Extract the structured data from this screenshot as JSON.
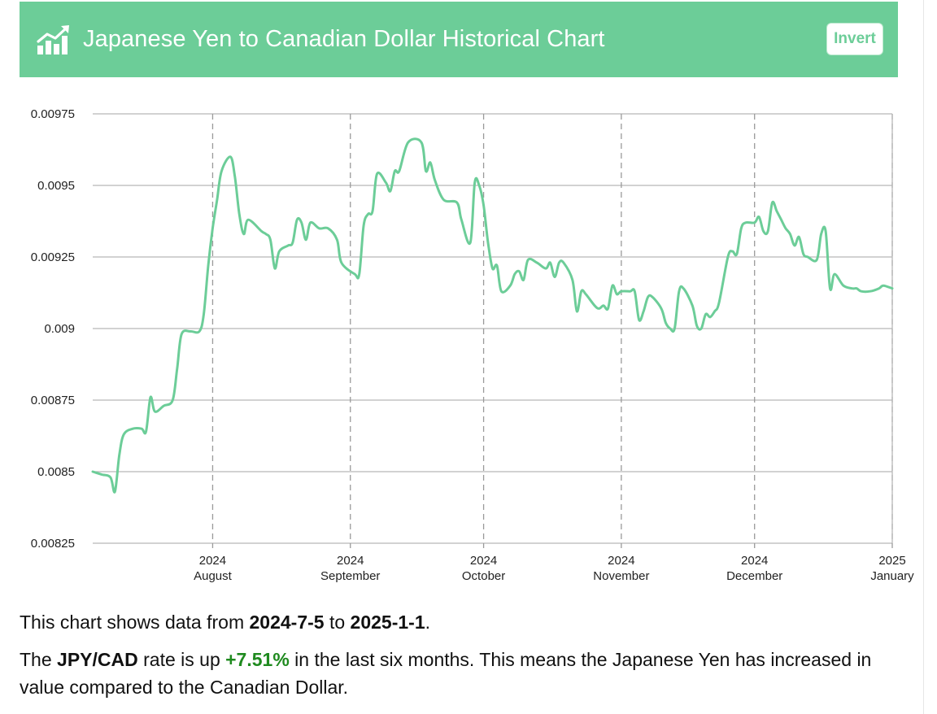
{
  "header": {
    "title": "Japanese Yen to Canadian Dollar Historical Chart",
    "invert_label": "Invert",
    "icon": "chart-trend-icon",
    "bg_color": "#6ccd98"
  },
  "chart_data": {
    "type": "line",
    "title": "",
    "xlabel": "",
    "ylabel": "",
    "line_color": "#6ccd98",
    "grid": true,
    "ylim": [
      0.00825,
      0.00975
    ],
    "y_ticks": [
      "0.00975",
      "0.0095",
      "0.00925",
      "0.009",
      "0.00875",
      "0.0085",
      "0.00825"
    ],
    "xlim": [
      "2024-07-05",
      "2025-01-01"
    ],
    "x_ticks": [
      {
        "date": "2024-08-01",
        "year": "2024",
        "month": "August"
      },
      {
        "date": "2024-09-01",
        "year": "2024",
        "month": "September"
      },
      {
        "date": "2024-10-01",
        "year": "2024",
        "month": "October"
      },
      {
        "date": "2024-11-01",
        "year": "2024",
        "month": "November"
      },
      {
        "date": "2024-12-01",
        "year": "2024",
        "month": "December"
      },
      {
        "date": "2025-01-01",
        "year": "2025",
        "month": "January"
      }
    ],
    "series": [
      {
        "name": "JPY/CAD",
        "points": [
          [
            "2024-07-05",
            0.0085
          ],
          [
            "2024-07-07",
            0.00849
          ],
          [
            "2024-07-09",
            0.00848
          ],
          [
            "2024-07-10",
            0.00843
          ],
          [
            "2024-07-11",
            0.00856
          ],
          [
            "2024-07-12",
            0.00863
          ],
          [
            "2024-07-14",
            0.00865
          ],
          [
            "2024-07-16",
            0.00865
          ],
          [
            "2024-07-17",
            0.00864
          ],
          [
            "2024-07-18",
            0.00876
          ],
          [
            "2024-07-19",
            0.00871
          ],
          [
            "2024-07-21",
            0.00873
          ],
          [
            "2024-07-23",
            0.00875
          ],
          [
            "2024-07-24",
            0.00886
          ],
          [
            "2024-07-25",
            0.00898
          ],
          [
            "2024-07-27",
            0.00899
          ],
          [
            "2024-07-29",
            0.00899
          ],
          [
            "2024-07-30",
            0.00905
          ],
          [
            "2024-07-31",
            0.00922
          ],
          [
            "2024-08-01",
            0.00935
          ],
          [
            "2024-08-02",
            0.00945
          ],
          [
            "2024-08-03",
            0.00955
          ],
          [
            "2024-08-05",
            0.0096
          ],
          [
            "2024-08-06",
            0.00953
          ],
          [
            "2024-08-07",
            0.0094
          ],
          [
            "2024-08-08",
            0.00933
          ],
          [
            "2024-08-09",
            0.00938
          ],
          [
            "2024-08-12",
            0.00934
          ],
          [
            "2024-08-13",
            0.00933
          ],
          [
            "2024-08-14",
            0.00931
          ],
          [
            "2024-08-15",
            0.00921
          ],
          [
            "2024-08-16",
            0.00927
          ],
          [
            "2024-08-18",
            0.00929
          ],
          [
            "2024-08-19",
            0.0093
          ],
          [
            "2024-08-20",
            0.00938
          ],
          [
            "2024-08-21",
            0.00937
          ],
          [
            "2024-08-22",
            0.00931
          ],
          [
            "2024-08-23",
            0.00937
          ],
          [
            "2024-08-25",
            0.00935
          ],
          [
            "2024-08-27",
            0.00935
          ],
          [
            "2024-08-29",
            0.00931
          ],
          [
            "2024-08-30",
            0.00923
          ],
          [
            "2024-09-02",
            0.00919
          ],
          [
            "2024-09-03",
            0.00919
          ],
          [
            "2024-09-04",
            0.00936
          ],
          [
            "2024-09-05",
            0.0094
          ],
          [
            "2024-09-06",
            0.00941
          ],
          [
            "2024-09-07",
            0.00954
          ],
          [
            "2024-09-09",
            0.00951
          ],
          [
            "2024-09-10",
            0.00948
          ],
          [
            "2024-09-11",
            0.00955
          ],
          [
            "2024-09-12",
            0.00955
          ],
          [
            "2024-09-14",
            0.00965
          ],
          [
            "2024-09-17",
            0.00965
          ],
          [
            "2024-09-18",
            0.00955
          ],
          [
            "2024-09-19",
            0.00958
          ],
          [
            "2024-09-20",
            0.00952
          ],
          [
            "2024-09-22",
            0.00945
          ],
          [
            "2024-09-25",
            0.00944
          ],
          [
            "2024-09-26",
            0.00938
          ],
          [
            "2024-09-28",
            0.0093
          ],
          [
            "2024-09-29",
            0.00951
          ],
          [
            "2024-09-30",
            0.0095
          ],
          [
            "2024-10-01",
            0.00943
          ],
          [
            "2024-10-02",
            0.0093
          ],
          [
            "2024-10-03",
            0.00921
          ],
          [
            "2024-10-04",
            0.00922
          ],
          [
            "2024-10-05",
            0.00913
          ],
          [
            "2024-10-07",
            0.00915
          ],
          [
            "2024-10-08",
            0.00919
          ],
          [
            "2024-10-09",
            0.0092
          ],
          [
            "2024-10-10",
            0.00917
          ],
          [
            "2024-10-11",
            0.00924
          ],
          [
            "2024-10-13",
            0.00923
          ],
          [
            "2024-10-15",
            0.00921
          ],
          [
            "2024-10-16",
            0.00923
          ],
          [
            "2024-10-17",
            0.00918
          ],
          [
            "2024-10-18",
            0.00923
          ],
          [
            "2024-10-19",
            0.00923
          ],
          [
            "2024-10-21",
            0.00917
          ],
          [
            "2024-10-22",
            0.00906
          ],
          [
            "2024-10-23",
            0.00913
          ],
          [
            "2024-10-24",
            0.00912
          ],
          [
            "2024-10-26",
            0.00908
          ],
          [
            "2024-10-27",
            0.00907
          ],
          [
            "2024-10-28",
            0.00908
          ],
          [
            "2024-10-29",
            0.00907
          ],
          [
            "2024-10-30",
            0.00915
          ],
          [
            "2024-10-31",
            0.00912
          ],
          [
            "2024-11-01",
            0.00913
          ],
          [
            "2024-11-03",
            0.00913
          ],
          [
            "2024-11-04",
            0.00913
          ],
          [
            "2024-11-05",
            0.00903
          ],
          [
            "2024-11-06",
            0.00906
          ],
          [
            "2024-11-07",
            0.00911
          ],
          [
            "2024-11-08",
            0.00911
          ],
          [
            "2024-11-10",
            0.00907
          ],
          [
            "2024-11-11",
            0.00902
          ],
          [
            "2024-11-12",
            0.009
          ],
          [
            "2024-11-13",
            0.009
          ],
          [
            "2024-11-14",
            0.00913
          ],
          [
            "2024-11-15",
            0.00914
          ],
          [
            "2024-11-17",
            0.00908
          ],
          [
            "2024-11-18",
            0.00901
          ],
          [
            "2024-11-19",
            0.009
          ],
          [
            "2024-11-20",
            0.00905
          ],
          [
            "2024-11-21",
            0.00904
          ],
          [
            "2024-11-22",
            0.00906
          ],
          [
            "2024-11-23",
            0.00909
          ],
          [
            "2024-11-25",
            0.00925
          ],
          [
            "2024-11-26",
            0.00927
          ],
          [
            "2024-11-27",
            0.00926
          ],
          [
            "2024-11-28",
            0.00935
          ],
          [
            "2024-11-29",
            0.00937
          ],
          [
            "2024-12-01",
            0.00937
          ],
          [
            "2024-12-02",
            0.00939
          ],
          [
            "2024-12-03",
            0.00934
          ],
          [
            "2024-12-04",
            0.00934
          ],
          [
            "2024-12-05",
            0.00944
          ],
          [
            "2024-12-06",
            0.00941
          ],
          [
            "2024-12-07",
            0.00938
          ],
          [
            "2024-12-08",
            0.00935
          ],
          [
            "2024-12-09",
            0.00933
          ],
          [
            "2024-12-10",
            0.00929
          ],
          [
            "2024-12-11",
            0.00932
          ],
          [
            "2024-12-12",
            0.00926
          ],
          [
            "2024-12-13",
            0.00925
          ],
          [
            "2024-12-15",
            0.00924
          ],
          [
            "2024-12-16",
            0.00933
          ],
          [
            "2024-12-17",
            0.00934
          ],
          [
            "2024-12-18",
            0.00914
          ],
          [
            "2024-12-19",
            0.00919
          ],
          [
            "2024-12-21",
            0.00915
          ],
          [
            "2024-12-23",
            0.00914
          ],
          [
            "2024-12-24",
            0.00914
          ],
          [
            "2024-12-25",
            0.00913
          ],
          [
            "2024-12-27",
            0.00913
          ],
          [
            "2024-12-29",
            0.00914
          ],
          [
            "2024-12-30",
            0.00915
          ],
          [
            "2025-01-01",
            0.00914
          ]
        ]
      }
    ]
  },
  "summary": {
    "line1_prefix": "This chart shows data from ",
    "start_date": "2024-7-5",
    "line1_mid": " to ",
    "end_date": "2025-1-1",
    "line1_suffix": ".",
    "line2_prefix": "The ",
    "pair": "JPY/CAD",
    "line2_mid": " rate is up ",
    "change": "+7.51%",
    "line2_suffix": " in the last six months. This means the Japanese Yen has increased in value compared to the Canadian Dollar.",
    "change_color": "#1f8a1f"
  }
}
